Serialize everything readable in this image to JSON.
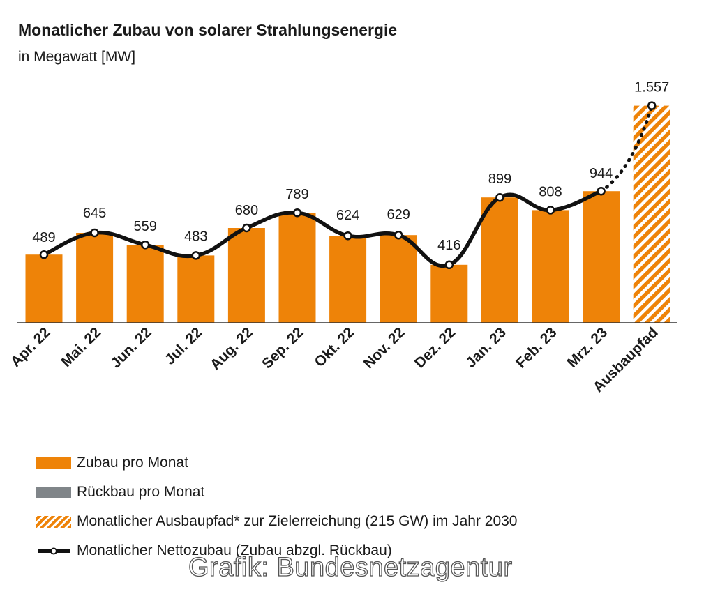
{
  "chart_data": {
    "type": "bar",
    "title": "Monatlicher Zubau von solarer Strahlungsenergie",
    "subtitle": "in Megawatt [MW]",
    "categories": [
      "Apr. 22",
      "Mai. 22",
      "Jun. 22",
      "Jul. 22",
      "Aug. 22",
      "Sep. 22",
      "Okt. 22",
      "Nov. 22",
      "Dez. 22",
      "Jan. 23",
      "Feb. 23",
      "Mrz. 23",
      "Ausbaupfad"
    ],
    "series": [
      {
        "name": "Zubau pro Monat",
        "type": "bar",
        "color": "#ee8308",
        "values": [
          489,
          645,
          559,
          483,
          680,
          789,
          624,
          629,
          416,
          899,
          808,
          944,
          null
        ]
      },
      {
        "name": "Rückbau pro Monat",
        "type": "bar",
        "color": "#808589",
        "values": [
          null,
          null,
          null,
          null,
          null,
          null,
          null,
          null,
          null,
          null,
          null,
          null,
          null
        ]
      },
      {
        "name": "Monatlicher Ausbaupfad* zur Zielerreichung (215 GW) im Jahr 2030",
        "type": "bar-hatched",
        "color": "#ee8308",
        "values": [
          null,
          null,
          null,
          null,
          null,
          null,
          null,
          null,
          null,
          null,
          null,
          null,
          1557
        ]
      },
      {
        "name": "Monatlicher Nettozubau (Zubau abzgl. Rückbau)",
        "type": "line",
        "color": "#111111",
        "values": [
          489,
          645,
          559,
          483,
          680,
          789,
          624,
          629,
          416,
          899,
          808,
          944,
          1557
        ]
      }
    ],
    "data_labels": [
      "489",
      "645",
      "559",
      "483",
      "680",
      "789",
      "624",
      "629",
      "416",
      "899",
      "808",
      "944",
      "1.557"
    ],
    "ylim": [
      0,
      1600
    ],
    "grid": false,
    "legend_position": "bottom"
  },
  "legend": [
    {
      "label": "Zubau pro Monat",
      "style": "orange"
    },
    {
      "label": "Rückbau pro Monat",
      "style": "gray"
    },
    {
      "label": "Monatlicher Ausbaupfad* zur Zielerreichung (215 GW) im Jahr 2030",
      "style": "hatch"
    },
    {
      "label": "Monatlicher Nettozubau (Zubau abzgl. Rückbau)",
      "style": "line"
    }
  ],
  "source": "Grafik: Bundesnetzagentur"
}
